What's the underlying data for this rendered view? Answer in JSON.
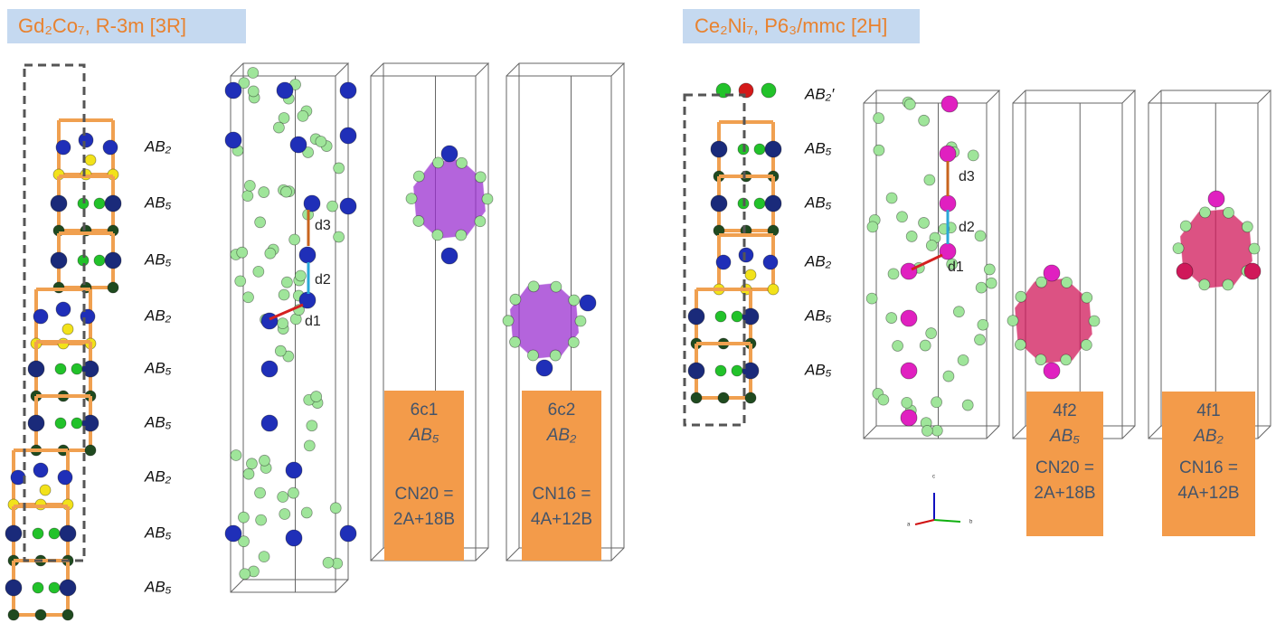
{
  "left": {
    "title": "Gd₂Co₇, R-3m [3R]",
    "layers": [
      "AB₂",
      "AB₅",
      "AB₅",
      "AB₂",
      "AB₅",
      "AB₅",
      "AB₂",
      "AB₅",
      "AB₅",
      "AB₅"
    ],
    "distances": [
      "d3",
      "d2",
      "d1"
    ],
    "sites": [
      {
        "label": "6c1",
        "block": "AB₅",
        "cn": "CN20 =",
        "formula": "2A+18B"
      },
      {
        "label": "6c2",
        "block": "AB₂",
        "cn": "CN16 =",
        "formula": "4A+12B"
      }
    ]
  },
  "right": {
    "title": "Ce₂Ni₇, P6₃/mmc [2H]",
    "layers": [
      "AB₂′",
      "AB₅",
      "AB₅",
      "AB₂",
      "AB₅",
      "AB₅"
    ],
    "distances": [
      "d3",
      "d2",
      "d1"
    ],
    "sites": [
      {
        "label": "4f2",
        "block": "AB₅",
        "cn": "CN20 =",
        "formula": "2A+18B"
      },
      {
        "label": "4f1",
        "block": "AB₂",
        "cn": "CN16 =",
        "formula": "4A+12B"
      }
    ]
  },
  "axes": [
    "a",
    "b",
    "c"
  ]
}
